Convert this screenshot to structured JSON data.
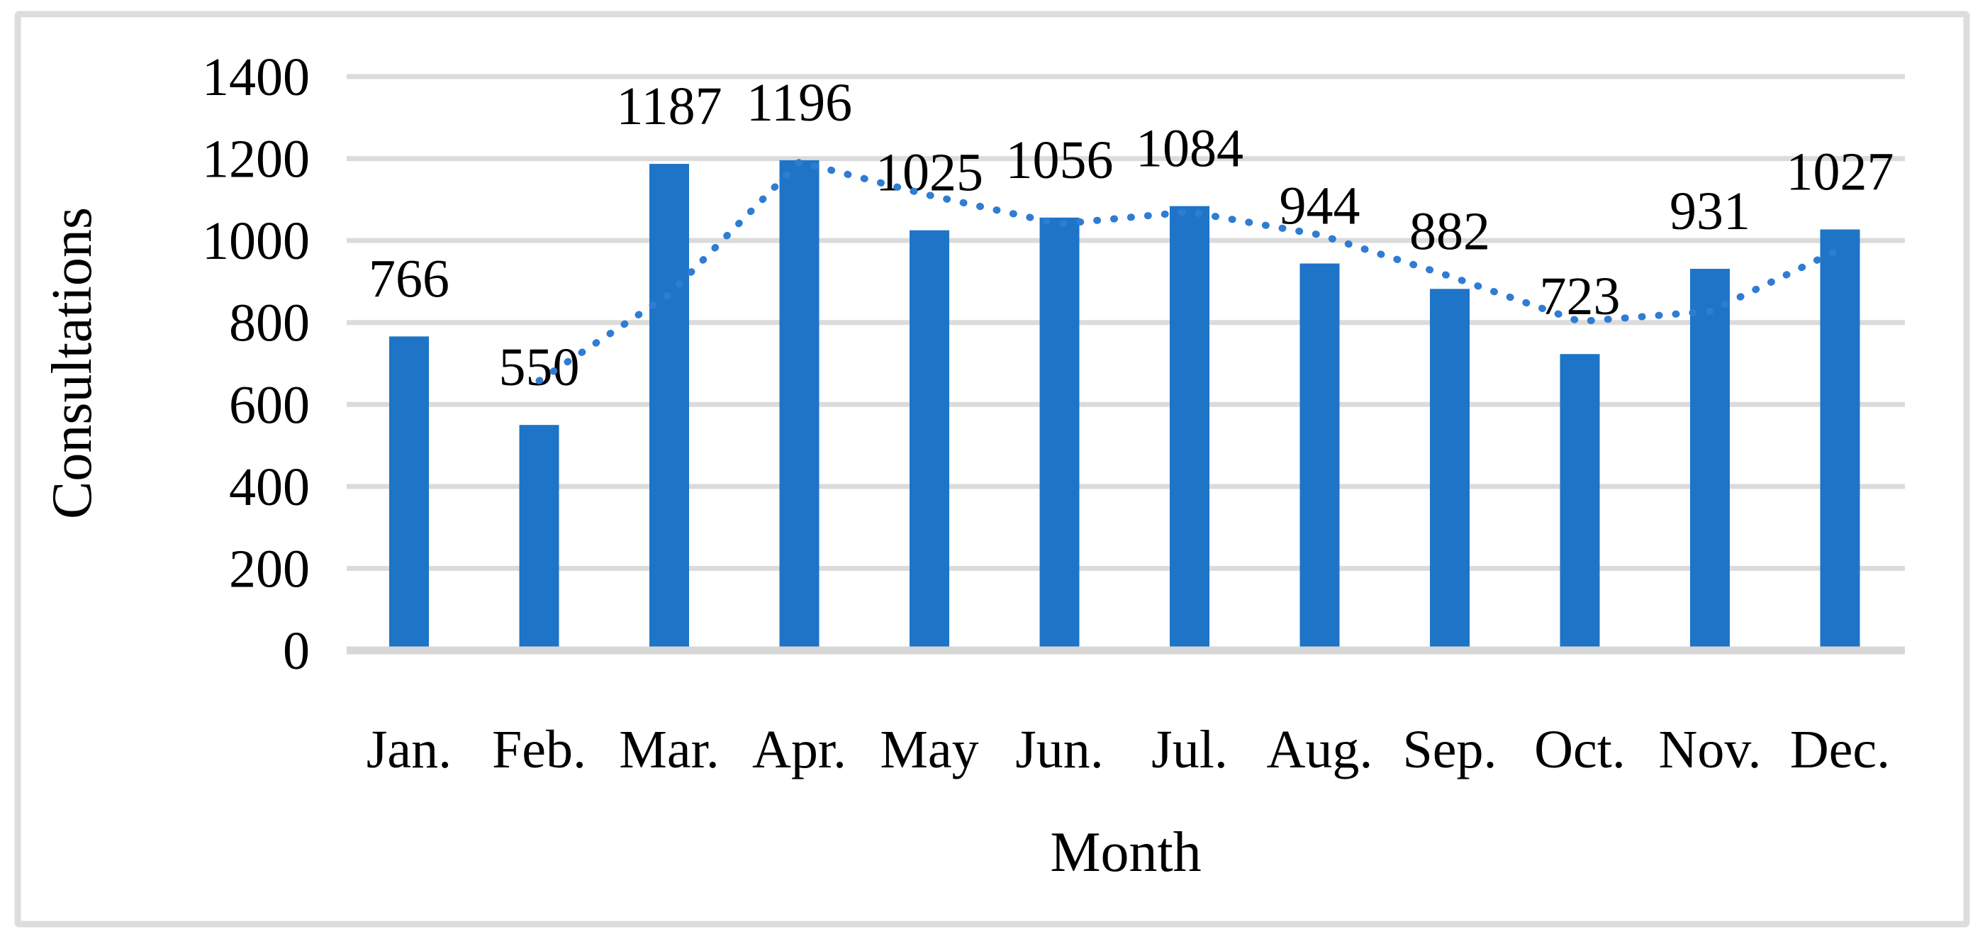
{
  "chart_data": {
    "type": "bar",
    "title": "",
    "categories": [
      "Jan.",
      "Feb.",
      "Mar.",
      "Apr.",
      "May",
      "Jun.",
      "Jul.",
      "Aug.",
      "Sep.",
      "Oct.",
      "Nov.",
      "Dec."
    ],
    "values": [
      766,
      550,
      1187,
      1196,
      1025,
      1056,
      1084,
      944,
      882,
      723,
      931,
      1027
    ],
    "data_labels": [
      "766",
      "550",
      "1187",
      "1196",
      "1025",
      "1056",
      "1084",
      "944",
      "882",
      "723",
      "931",
      "1027"
    ],
    "xlabel": "Month",
    "ylabel": "Consultations",
    "ylim": [
      0,
      1400
    ],
    "ytick_step": 200,
    "ytick_labels": [
      "0",
      "200",
      "400",
      "600",
      "800",
      "1000",
      "1200",
      "1400"
    ],
    "grid": "horizontal",
    "legend_position": "none",
    "trendline": {
      "type": "moving_average",
      "period": 2,
      "line_style": "dotted",
      "values": [
        null,
        658,
        868.5,
        1191.5,
        1110.5,
        1040.5,
        1070,
        1014,
        913,
        802.5,
        827,
        979
      ]
    },
    "colors": {
      "bar": "#1E74C7",
      "trendline": "#2F7CD3",
      "gridline": "#DBDBDB",
      "axis_line": "#D7D7D7",
      "text": "#000000",
      "border": "#DDDDDD",
      "background": "#FFFFFF"
    }
  }
}
